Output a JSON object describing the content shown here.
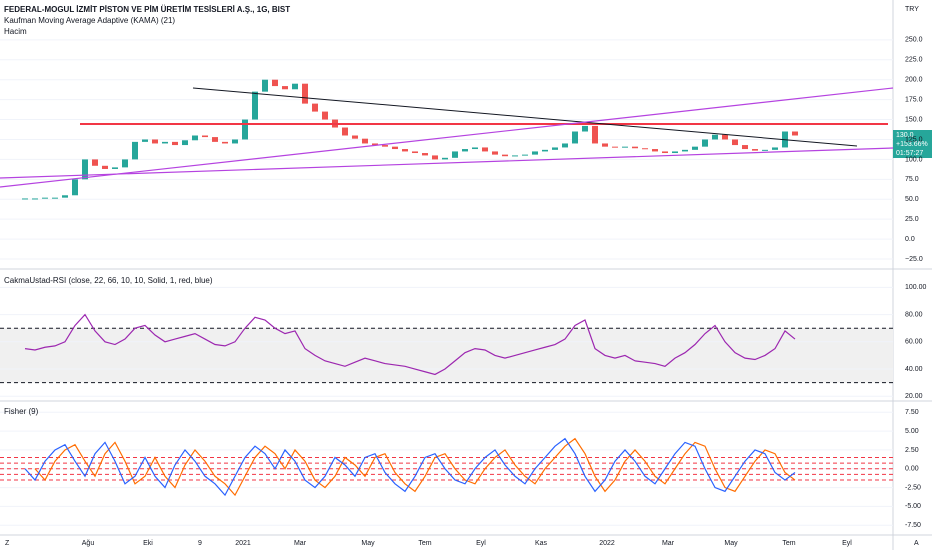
{
  "chart_data": {
    "type": "candlestick",
    "title": "FEDERAL-MOGUL İZMİT PİSTON VE PİM ÜRETİM TESİSLERİ A.Ş., 1G, BIST",
    "indicator_1": "Kaufman Moving Average Adaptive (KAMA) (21)",
    "indicator_2": "Hacim",
    "currency": "TRY",
    "price_tag": {
      "price": "130.0",
      "change": "+153.66%",
      "countdown": "01:57:27"
    },
    "x_labels": [
      "Ağu",
      "Eki",
      "9",
      "2021",
      "Mar",
      "May",
      "Tem",
      "Eyl",
      "Kas",
      "2022",
      "Mar",
      "May",
      "Tem",
      "Eyl"
    ],
    "corner_left": "Z",
    "corner_right": "A",
    "up_color": "#26a69a",
    "down_color": "#ef5350",
    "values": [
      51,
      51,
      52,
      52,
      55,
      75,
      100,
      92,
      88,
      90,
      100,
      122,
      125,
      120,
      122,
      118,
      124,
      130,
      128,
      122,
      120,
      125,
      150,
      185,
      200,
      192,
      188,
      195,
      170,
      160,
      150,
      140,
      130,
      126,
      120,
      118,
      116,
      113,
      110,
      108,
      105,
      100,
      102,
      110,
      113,
      115,
      110,
      106,
      104,
      105,
      106,
      110,
      112,
      115,
      120,
      135,
      142,
      120,
      116,
      115,
      116,
      114,
      113,
      110,
      108,
      110,
      112,
      116,
      125,
      131,
      125,
      118,
      113,
      111,
      112,
      115,
      135,
      130
    ],
    "ylim": [
      -37.5,
      300
    ],
    "yticks": [
      {
        "value": 250,
        "label": "250.0"
      },
      {
        "value": 225,
        "label": "225.0"
      },
      {
        "value": 200,
        "label": "200.0"
      },
      {
        "value": 175,
        "label": "175.0"
      },
      {
        "value": 150,
        "label": "150.0"
      },
      {
        "value": 125,
        "label": "125.0"
      },
      {
        "value": 100,
        "label": "100.0"
      },
      {
        "value": 75,
        "label": "75.0"
      },
      {
        "value": 50,
        "label": "50.0"
      },
      {
        "value": 25,
        "label": "25.0"
      },
      {
        "value": 0,
        "label": "0.0"
      },
      {
        "value": -25,
        "label": "−25.0"
      }
    ],
    "rsi": {
      "title": "CakmaUstad-RSI (close, 22, 66, 10, 10, Solid, 1, red, blue)",
      "color": "#9c27b0",
      "values": [
        55,
        54,
        56,
        57,
        60,
        72,
        80,
        68,
        60,
        58,
        62,
        70,
        72,
        65,
        60,
        62,
        64,
        66,
        62,
        58,
        57,
        60,
        70,
        78,
        76,
        70,
        66,
        68,
        55,
        50,
        46,
        44,
        42,
        45,
        48,
        46,
        44,
        43,
        42,
        40,
        38,
        36,
        40,
        46,
        52,
        55,
        54,
        50,
        48,
        50,
        52,
        54,
        56,
        58,
        62,
        72,
        76,
        55,
        50,
        48,
        50,
        46,
        45,
        44,
        42,
        48,
        52,
        58,
        66,
        72,
        60,
        52,
        48,
        47,
        50,
        55,
        68,
        62
      ],
      "levels": [
        70,
        30
      ],
      "ylim": [
        16.5,
        113.5
      ],
      "yticks": [
        {
          "value": 100,
          "label": "100.00"
        },
        {
          "value": 80,
          "label": "80.00"
        },
        {
          "value": 60,
          "label": "60.00"
        },
        {
          "value": 40,
          "label": "40.00"
        },
        {
          "value": 20,
          "label": "20.00"
        }
      ]
    },
    "fisher": {
      "title": "Fisher (9)",
      "color": "#2962ff",
      "trigger_color": "#ff6d00",
      "values": [
        0,
        -1.5,
        1,
        2.5,
        3.2,
        1,
        -1,
        2,
        3.5,
        1,
        -2,
        -1,
        1.5,
        -1,
        -2.5,
        0.5,
        2.5,
        1,
        -1,
        -2,
        -3.5,
        -1,
        1.5,
        3,
        2,
        0,
        2.5,
        1,
        -1.5,
        -2.5,
        -1,
        1.5,
        0.5,
        -1,
        1.5,
        2,
        -0.5,
        -2,
        -3,
        -1,
        1.5,
        2,
        0,
        -1.5,
        -2,
        0,
        1.5,
        2.5,
        0.5,
        -1,
        -2,
        0,
        1.5,
        3,
        4,
        2,
        -1,
        -3,
        -1.5,
        1,
        2.5,
        1,
        -1,
        -2,
        0,
        2,
        3.5,
        3,
        0,
        -2.5,
        -3,
        -1,
        1,
        2.5,
        2,
        -0.5,
        -1.5,
        -0.5
      ],
      "levels": [
        1.5,
        0.75,
        0,
        -0.75,
        -1.5
      ],
      "ylim": [
        -8.8,
        9
      ],
      "yticks": [
        {
          "value": 7.5,
          "label": "7.50"
        },
        {
          "value": 5,
          "label": "5.00"
        },
        {
          "value": 2.5,
          "label": "2.50"
        },
        {
          "value": 0,
          "label": "0.00"
        },
        {
          "value": -2.5,
          "label": "-2.50"
        },
        {
          "value": -5,
          "label": "-5.00"
        },
        {
          "value": -7.5,
          "label": "-7.50"
        }
      ]
    }
  }
}
